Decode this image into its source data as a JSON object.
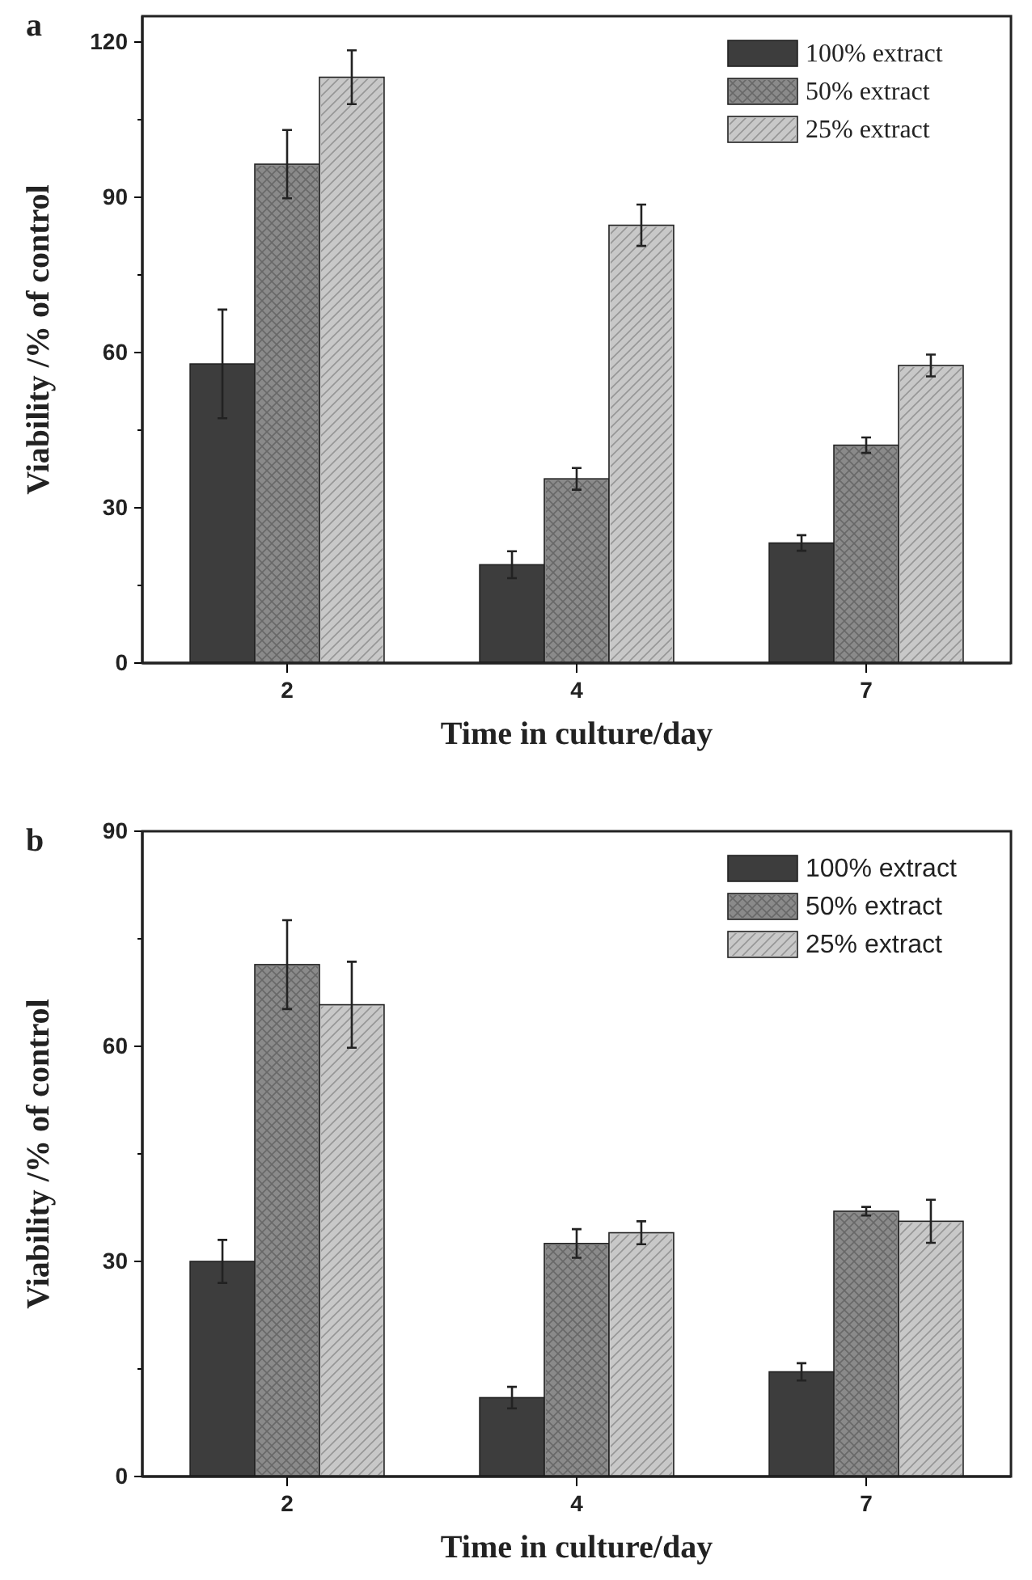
{
  "chart_data": [
    {
      "type": "bar",
      "title": "a",
      "xlabel": "Time in culture/day",
      "ylabel": "Viability /% of control",
      "categories": [
        "2",
        "4",
        "7"
      ],
      "ylim": [
        0,
        125
      ],
      "yticks": [
        0,
        {
          "value": 15,
          "label": null
        },
        30,
        {
          "value": 45,
          "label": null
        },
        60,
        {
          "value": 75,
          "label": null
        },
        90,
        {
          "value": 105,
          "label": null
        },
        120
      ],
      "legend": "top right",
      "series": [
        {
          "name": "100% extract",
          "color": "#3d3d3d",
          "values": [
            57.8,
            19,
            23.2
          ],
          "errors": [
            10.5,
            2.6,
            1.5
          ]
        },
        {
          "name": "50% extract",
          "color": "#8a8a8a",
          "values": [
            96.4,
            35.6,
            42.1
          ],
          "errors": [
            6.6,
            2.1,
            1.5
          ]
        },
        {
          "name": "25% extract",
          "color": "#c8c8c8",
          "values": [
            113.2,
            84.6,
            57.5
          ],
          "errors": [
            5.2,
            4,
            2.1
          ]
        }
      ]
    },
    {
      "type": "bar",
      "title": "b",
      "xlabel": "Time in culture/day",
      "ylabel": "Viability /% of control",
      "categories": [
        "2",
        "4",
        "7"
      ],
      "ylim": [
        0,
        90
      ],
      "yticks": [
        0,
        {
          "value": 15,
          "label": null
        },
        30,
        {
          "value": 45,
          "label": null
        },
        60,
        {
          "value": 75,
          "label": null
        },
        90
      ],
      "legend": "top right",
      "series": [
        {
          "name": "100% extract",
          "color": "#3d3d3d",
          "values": [
            30,
            11,
            14.6
          ],
          "errors": [
            3,
            1.5,
            1.2
          ]
        },
        {
          "name": "50% extract",
          "color": "#8a8a8a",
          "values": [
            71.4,
            32.5,
            37
          ],
          "errors": [
            6.2,
            2,
            0.6
          ]
        },
        {
          "name": "25% extract",
          "color": "#c8c8c8",
          "values": [
            65.8,
            34,
            35.6
          ],
          "errors": [
            6,
            1.6,
            3
          ]
        }
      ]
    }
  ]
}
